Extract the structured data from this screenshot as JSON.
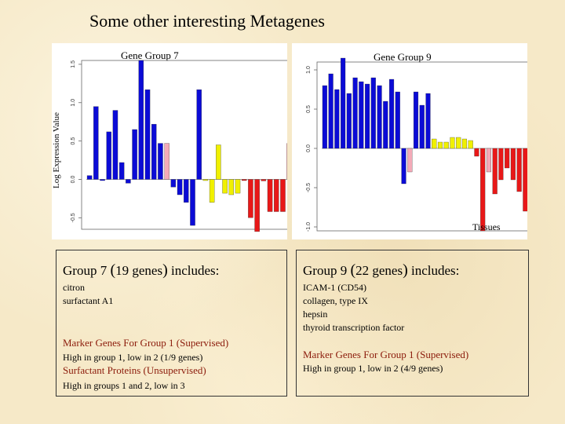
{
  "slide": {
    "title": "Some other interesting Metagenes"
  },
  "axes": {
    "ylabel": "Log Expression Value",
    "xlabel": "Tissues"
  },
  "chart_data": [
    {
      "type": "bar",
      "title": "Gene Group 7",
      "ylim": [
        -0.65,
        1.55
      ],
      "yticks": [
        -0.5,
        0.0,
        0.5,
        1.0,
        1.5
      ],
      "ytick_labels": [
        "-0.5",
        "0.0",
        "0.5",
        "1.0",
        "1.5"
      ],
      "grid": false,
      "color_groups": {
        "#0b0bd6": "blue",
        "#f4aab8": "pink",
        "#f0f000": "yellow",
        "#e81818": "red"
      },
      "values": [
        0.05,
        0.95,
        0.0,
        0.62,
        0.9,
        0.22,
        -0.05,
        0.65,
        1.55,
        1.17,
        0.72,
        0.47,
        0.47,
        -0.1,
        -0.2,
        -0.3,
        -0.6,
        1.17,
        0.0,
        -0.3,
        0.45,
        -0.18,
        -0.2,
        -0.18,
        0.0,
        -0.5,
        -0.68,
        -0.02,
        -0.42,
        -0.42,
        -0.42,
        0.47,
        -0.03
      ],
      "colors": [
        "blue",
        "blue",
        "blue",
        "blue",
        "blue",
        "blue",
        "blue",
        "blue",
        "blue",
        "blue",
        "blue",
        "blue",
        "pink",
        "blue",
        "blue",
        "blue",
        "blue",
        "blue",
        "yellow",
        "yellow",
        "yellow",
        "yellow",
        "yellow",
        "yellow",
        "red",
        "red",
        "red",
        "red",
        "red",
        "red",
        "red",
        "red",
        "red"
      ]
    },
    {
      "type": "bar",
      "title": "Gene Group 9",
      "ylim": [
        -1.05,
        1.1
      ],
      "yticks": [
        -1.0,
        -0.5,
        0.0,
        0.5,
        1.0
      ],
      "ytick_labels": [
        "-1.0",
        "-0.5",
        "0.0",
        "0.5",
        "1.0"
      ],
      "grid": false,
      "color_groups": {
        "#0b0bd6": "blue",
        "#f4aab8": "pink",
        "#f0f000": "yellow",
        "#e81818": "red"
      },
      "values": [
        0.8,
        0.95,
        0.75,
        1.15,
        0.7,
        0.9,
        0.85,
        0.82,
        0.9,
        0.8,
        0.6,
        0.88,
        0.72,
        -0.45,
        -0.3,
        0.72,
        0.55,
        0.7,
        0.12,
        0.08,
        0.08,
        0.14,
        0.14,
        0.12,
        0.1,
        -0.1,
        -1.05,
        -0.3,
        -0.58,
        -0.4,
        -0.25,
        -0.4,
        -0.55,
        -0.8,
        -0.42
      ],
      "colors": [
        "blue",
        "blue",
        "blue",
        "blue",
        "blue",
        "blue",
        "blue",
        "blue",
        "blue",
        "blue",
        "blue",
        "blue",
        "blue",
        "blue",
        "pink",
        "blue",
        "blue",
        "blue",
        "yellow",
        "yellow",
        "yellow",
        "yellow",
        "yellow",
        "yellow",
        "yellow",
        "red",
        "red",
        "pink",
        "red",
        "red",
        "red",
        "red",
        "red",
        "red",
        "red"
      ]
    }
  ],
  "box_g7": {
    "heading_prefix": "Group 7 ",
    "heading_open": "(",
    "heading_mid": "19 genes",
    "heading_close": ")",
    "heading_suffix": " includes:",
    "genes": [
      "citron",
      "surfactant A1"
    ],
    "marker1_title": "Marker Genes For Group 1 (Supervised)",
    "marker1_text": "High in group 1, low in 2  (1/9 genes)",
    "marker2_title": "Surfactant Proteins (Unsupervised)",
    "marker2_text": "High in groups 1 and 2, low in 3"
  },
  "box_g9": {
    "heading_prefix": "Group 9 ",
    "heading_open": "(",
    "heading_mid": "22 genes",
    "heading_close": ")",
    "heading_suffix": " includes:",
    "genes": [
      "ICAM-1 (CD54)",
      "collagen, type IX",
      "hepsin",
      "thyroid transcription factor"
    ],
    "marker1_title": "Marker Genes For Group 1 (Supervised)",
    "marker1_text": "High in group 1, low in 2  (4/9 genes)"
  }
}
